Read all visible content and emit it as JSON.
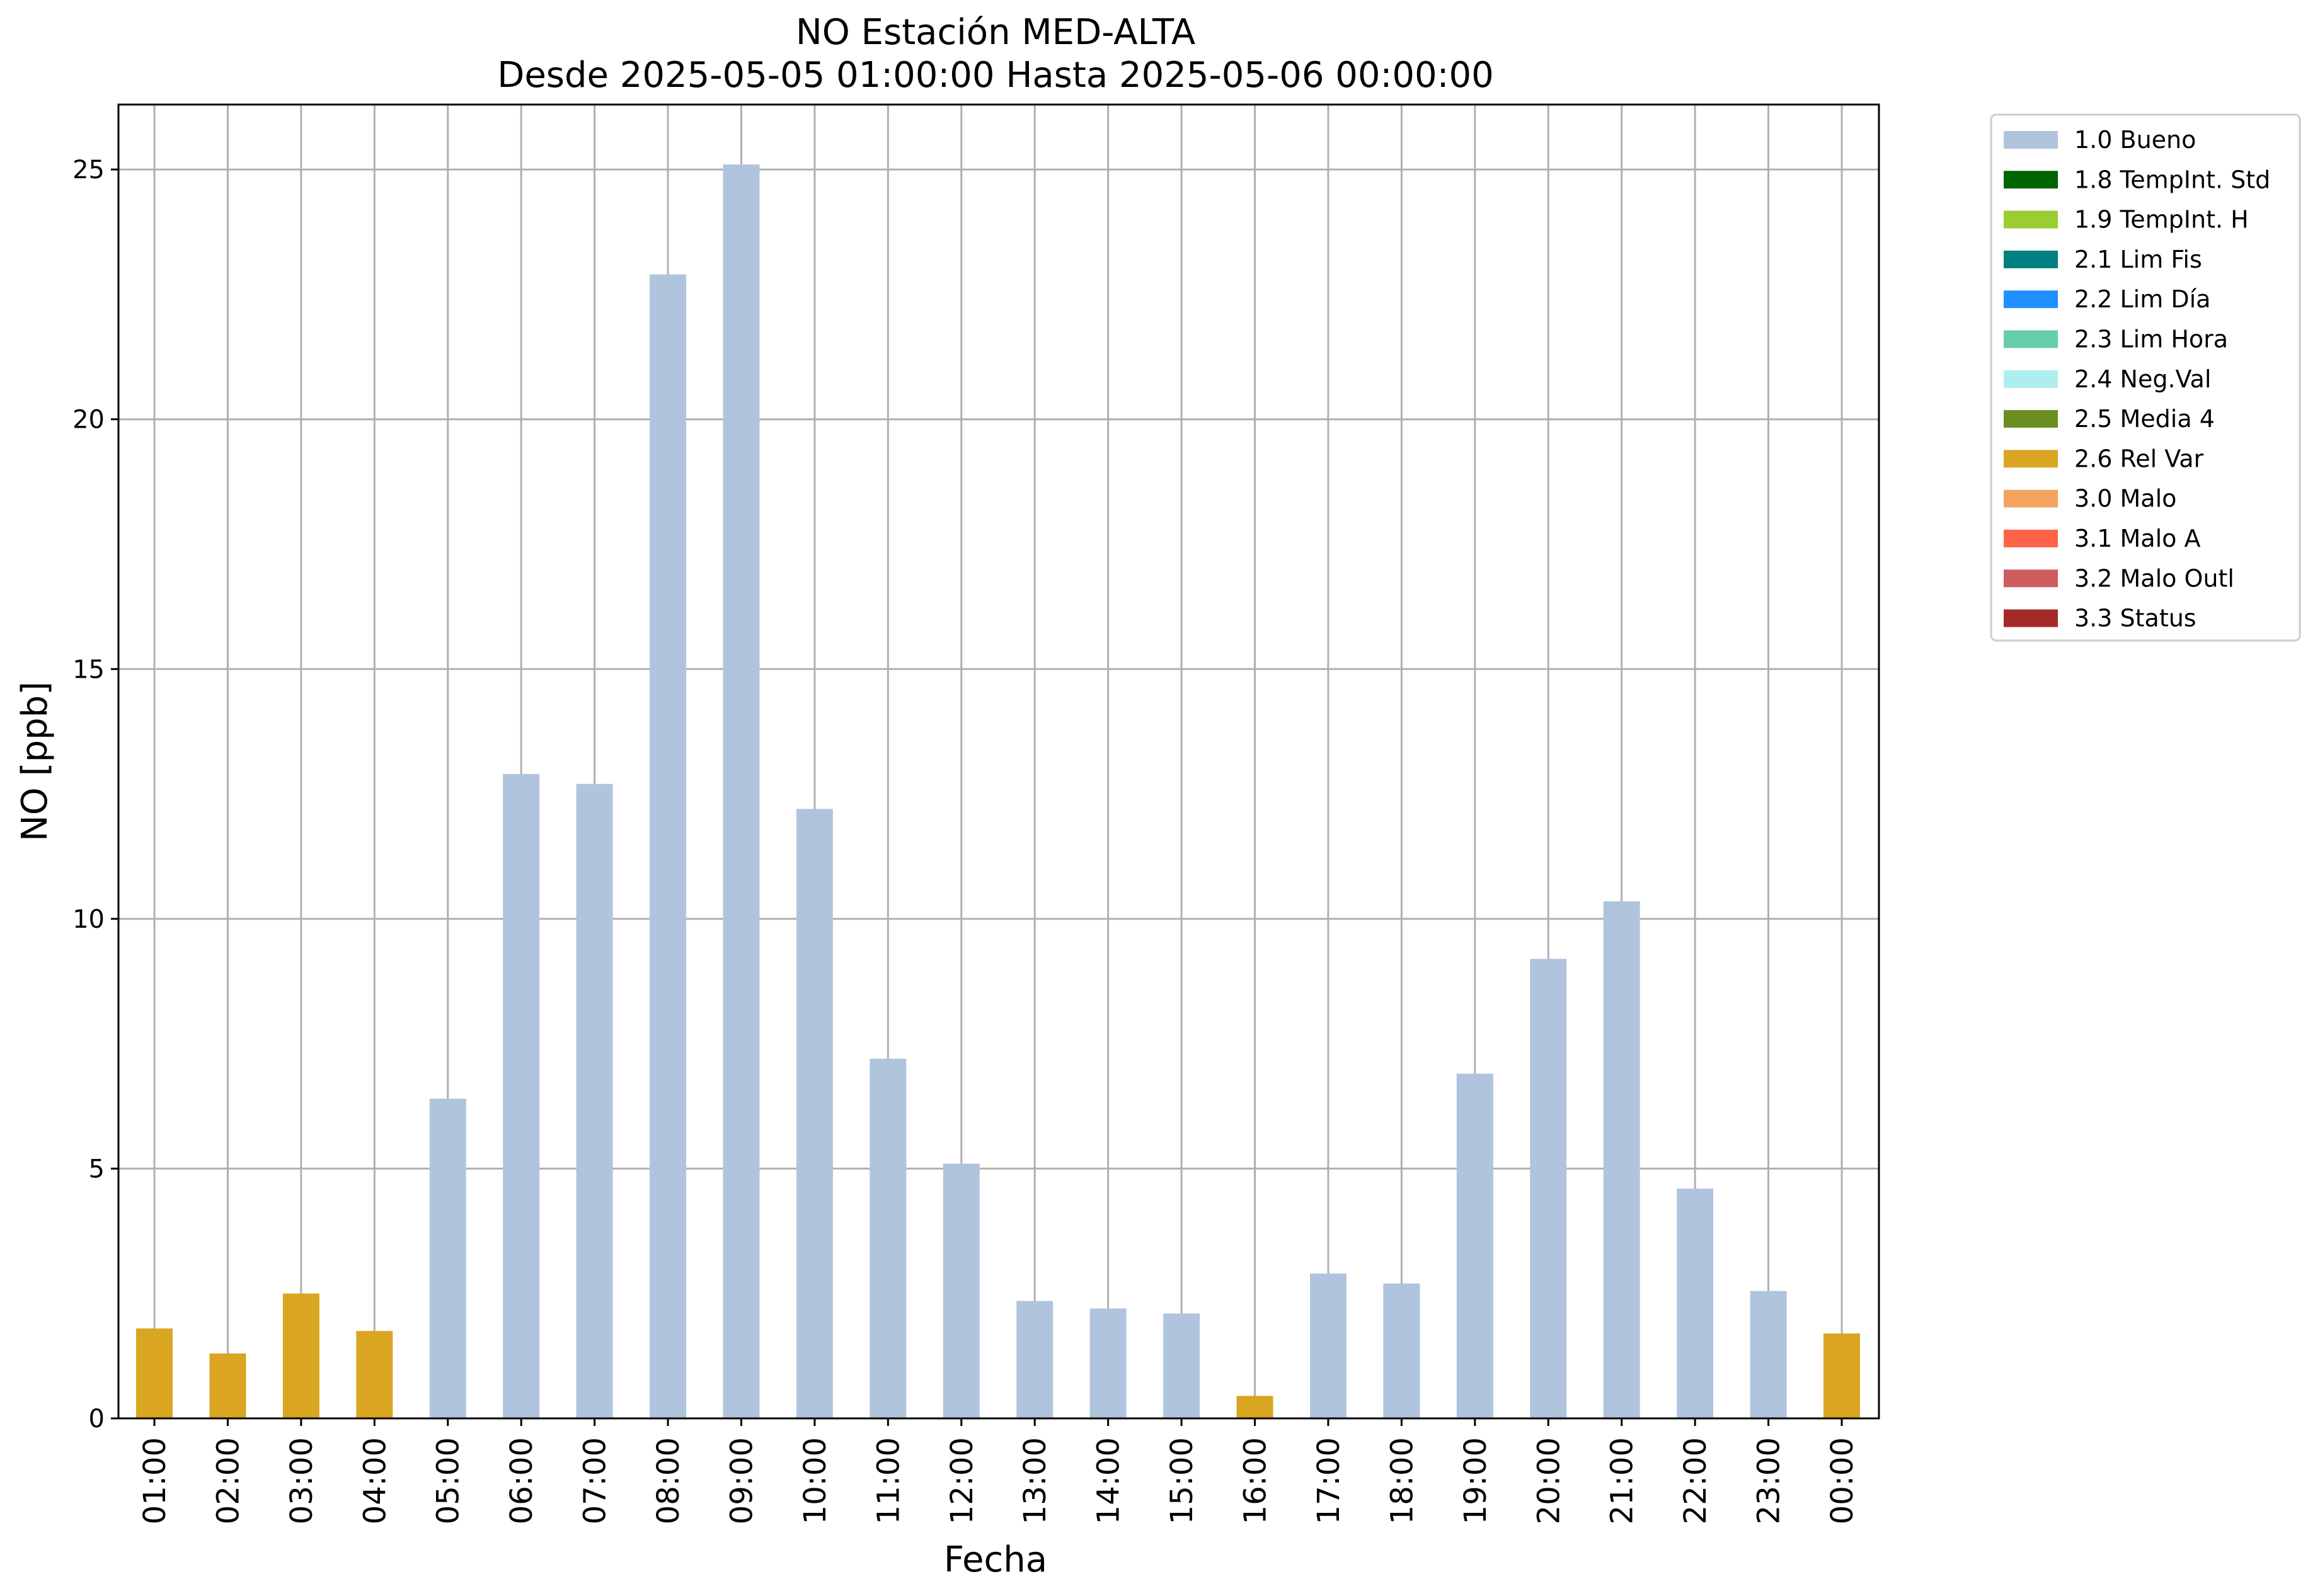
{
  "chart_data": {
    "type": "bar",
    "title": "NO Estación MED-ALTA",
    "subtitle": "Desde 2025-05-05 01:00:00 Hasta 2025-05-06 00:00:00",
    "xlabel": "Fecha",
    "ylabel": "NO [ppb]",
    "ylim": [
      0,
      26.3
    ],
    "yticks": [
      "0",
      "5",
      "10",
      "15",
      "20",
      "25"
    ],
    "grid": true,
    "legend_position": "outside-top-right",
    "categories": [
      "01:00",
      "02:00",
      "03:00",
      "04:00",
      "05:00",
      "06:00",
      "07:00",
      "08:00",
      "09:00",
      "10:00",
      "11:00",
      "12:00",
      "13:00",
      "14:00",
      "15:00",
      "16:00",
      "17:00",
      "18:00",
      "19:00",
      "20:00",
      "21:00",
      "22:00",
      "23:00",
      "00:00"
    ],
    "values": [
      1.8,
      1.3,
      2.5,
      1.75,
      6.4,
      12.9,
      12.7,
      22.9,
      25.1,
      12.2,
      7.2,
      5.1,
      2.35,
      2.2,
      2.1,
      0.45,
      2.9,
      2.7,
      6.9,
      9.2,
      10.35,
      4.6,
      2.55,
      1.7
    ],
    "flags": [
      "2.6 Rel Var",
      "2.6 Rel Var",
      "2.6 Rel Var",
      "2.6 Rel Var",
      "1.0 Bueno",
      "1.0 Bueno",
      "1.0 Bueno",
      "1.0 Bueno",
      "1.0 Bueno",
      "1.0 Bueno",
      "1.0 Bueno",
      "1.0 Bueno",
      "1.0 Bueno",
      "1.0 Bueno",
      "1.0 Bueno",
      "2.6 Rel Var",
      "1.0 Bueno",
      "1.0 Bueno",
      "1.0 Bueno",
      "1.0 Bueno",
      "1.0 Bueno",
      "1.0 Bueno",
      "1.0 Bueno",
      "2.6 Rel Var"
    ],
    "legend": [
      {
        "name": "1.0 Bueno",
        "color": "#b0c4de"
      },
      {
        "name": "1.8 TempInt. Std",
        "color": "#006400"
      },
      {
        "name": "1.9 TempInt. H",
        "color": "#9acd32"
      },
      {
        "name": "2.1 Lim Fis",
        "color": "#008080"
      },
      {
        "name": "2.2 Lim Día",
        "color": "#1e90ff"
      },
      {
        "name": "2.3 Lim Hora",
        "color": "#66cdaa"
      },
      {
        "name": "2.4 Neg.Val",
        "color": "#afeeee"
      },
      {
        "name": "2.5 Media 4",
        "color": "#6b8e23"
      },
      {
        "name": "2.6 Rel Var",
        "color": "#daa520"
      },
      {
        "name": "3.0 Malo",
        "color": "#f4a460"
      },
      {
        "name": "3.1 Malo A",
        "color": "#ff6347"
      },
      {
        "name": "3.2 Malo Outl",
        "color": "#cd5c5c"
      },
      {
        "name": "3.3 Status",
        "color": "#a52a2a"
      }
    ]
  }
}
